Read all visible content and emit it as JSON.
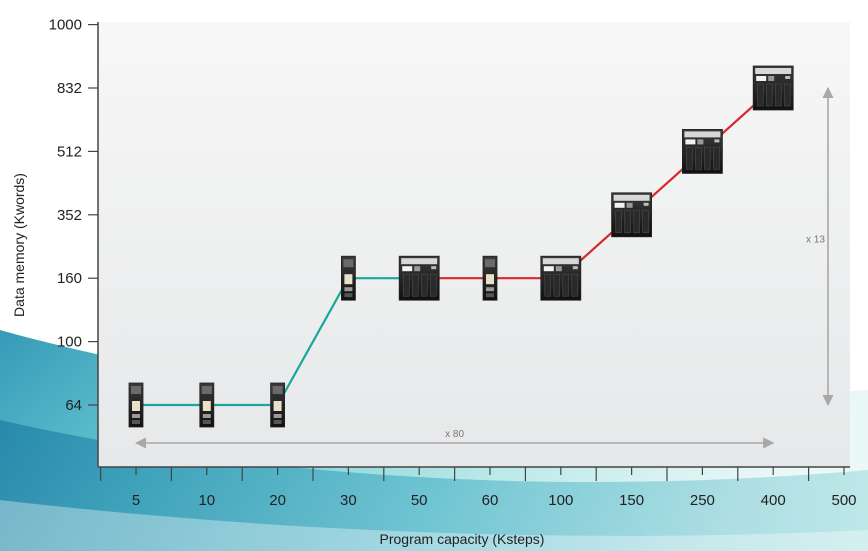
{
  "chart_data": {
    "type": "line",
    "title": "",
    "xlabel": "Program capacity (Ksteps)",
    "ylabel": "Data memory (Kwords)",
    "x_ticks": [
      "5",
      "10",
      "20",
      "30",
      "50",
      "60",
      "100",
      "150",
      "250",
      "400",
      "500"
    ],
    "y_ticks": [
      "64",
      "100",
      "160",
      "352",
      "512",
      "832",
      "1000"
    ],
    "grid": false,
    "legend": "none",
    "series": [
      {
        "color": "#1aa79a",
        "points": [
          {
            "x": "5",
            "y": "64",
            "device": "compact"
          },
          {
            "x": "10",
            "y": "64",
            "device": "compact"
          },
          {
            "x": "20",
            "y": "64",
            "device": "compact"
          },
          {
            "x": "30",
            "y": "160",
            "device": "compact"
          },
          {
            "x": "50",
            "y": "160",
            "device": "rack"
          }
        ]
      },
      {
        "color": "#d9282c",
        "points": [
          {
            "x": "50",
            "y": "160",
            "device": "rack"
          },
          {
            "x": "60",
            "y": "160",
            "device": "compact"
          },
          {
            "x": "100",
            "y": "160",
            "device": "rack"
          },
          {
            "x": "150",
            "y": "352",
            "device": "rack"
          },
          {
            "x": "250",
            "y": "512",
            "device": "rack"
          },
          {
            "x": "400",
            "y": "832",
            "device": "rack"
          }
        ]
      }
    ],
    "annotations": [
      {
        "text": "x 80",
        "direction": "horizontal",
        "from": "5",
        "to": "400"
      },
      {
        "text": "x 13",
        "direction": "vertical",
        "from": "64",
        "to": "832"
      }
    ]
  },
  "colors": {
    "plot_background": "#f4f5f5",
    "axis": "#444444",
    "annotation_arrow": "#a8a8a8",
    "teal_swoosh": "#2fb4c4"
  }
}
